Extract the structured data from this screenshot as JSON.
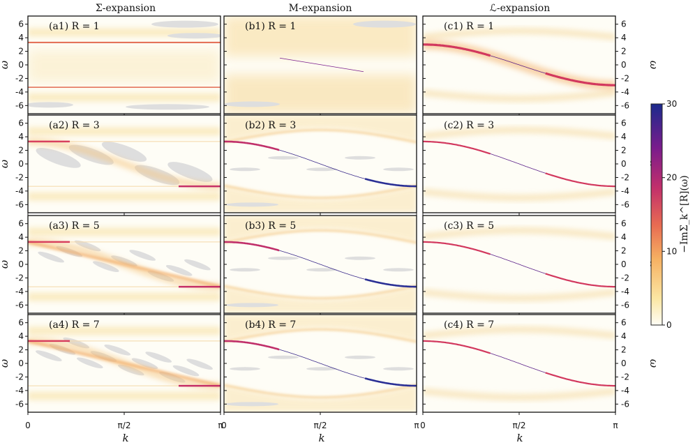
{
  "chart_data": {
    "type": "heatmap",
    "column_titles": [
      "Σ-expansion",
      "M-expansion",
      "ℒ-expansion"
    ],
    "row_orders": [
      "R = 1",
      "R = 3",
      "R = 5",
      "R = 7"
    ],
    "panel_labels": [
      [
        "(a1) R = 1",
        "(b1) R = 1",
        "(c1) R = 1"
      ],
      [
        "(a2) R = 3",
        "(b2) R = 3",
        "(c2) R = 3"
      ],
      [
        "(a3) R = 5",
        "(b3) R = 5",
        "(c3) R = 5"
      ],
      [
        "(a4) R = 7",
        "(b4) R = 7",
        "(c4) R = 7"
      ]
    ],
    "xlabel": "k",
    "ylabel": "ω",
    "xlim": [
      0,
      3.14159
    ],
    "ylim": [
      -7.2,
      7.2
    ],
    "x_ticks": [
      0,
      1.5708,
      3.14159
    ],
    "x_tick_labels": [
      "0",
      "π/2",
      "π"
    ],
    "y_ticks": [
      6,
      4,
      2,
      0,
      -2,
      -4,
      -6
    ],
    "y_tick_labels": [
      "6",
      "4",
      "2",
      "0",
      "-2",
      "-4",
      "-6"
    ],
    "colorbar": {
      "label": "−ImΣ_k^[R](ω)",
      "range": [
        0,
        30
      ],
      "ticks": [
        0,
        10,
        20,
        30
      ],
      "tick_labels": [
        "0",
        "10",
        "20",
        "30"
      ],
      "colors": [
        "#fefdf5",
        "#fbe6a3",
        "#f6b062",
        "#e86c52",
        "#c2306b",
        "#7a1c8c",
        "#1b2a8c"
      ]
    },
    "masked_color": "#dedede",
    "dispersion": "ω = 3.3·cos(k)",
    "side_bands_omega": [
      4.8,
      -4.8
    ]
  }
}
